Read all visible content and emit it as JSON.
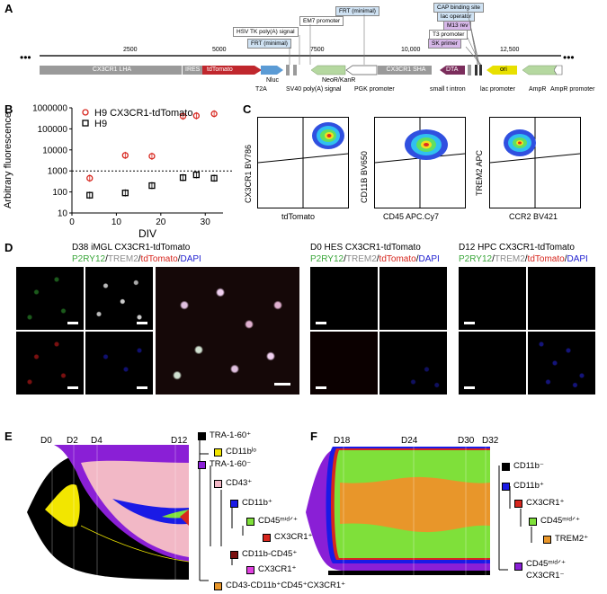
{
  "panels": {
    "a": "A",
    "b": "B",
    "c": "C",
    "d": "D",
    "e": "E",
    "f": "F"
  },
  "panel_a": {
    "ellipsis": "•••",
    "scale_ticks": [
      "2500",
      "5000",
      "7500",
      "10,000",
      "12,500"
    ],
    "segments": {
      "lha": "CX3CR1 LHA",
      "ires": "IRES",
      "tdtomato": "tdTomato",
      "sha": "CX3CR1 SHA",
      "dta": "DTA",
      "ori": "ori"
    },
    "top_labels": {
      "frt_min_top": "FRT (minimal)",
      "em7": "EM7 promoter",
      "hsv": "HSV TK poly(A) signal",
      "frt_min": "FRT (minimal)",
      "cap": "CAP binding site",
      "lac_op": "lac operator",
      "m13": "M13 rev",
      "t3": "T3 promoter",
      "sk": "SK primer"
    },
    "bottom_labels": {
      "t2a": "T2A",
      "nluc": "Nluc",
      "sv40": "SV40 poly(A) signal",
      "neor": "NeoR/KanR",
      "pgk": "PGK promoter",
      "small_t": "small t intron",
      "lac_prom": "lac promoter",
      "ampr": "AmpR",
      "ampr_prom": "AmpR promoter"
    },
    "colors": {
      "grey": "#9a9a9a",
      "red": "#c0272d",
      "blue": "#5b9bd5",
      "green": "#b5d8a0",
      "purple": "#7b2d5c",
      "yellow": "#e8e000"
    }
  },
  "chart_data": [
    {
      "type": "scatter",
      "ylabel": "Arbitrary fluorescence",
      "xlabel": "DIV",
      "yscale": "log",
      "ylim": [
        10,
        1000000
      ],
      "xlim": [
        0,
        34
      ],
      "x_ticks": [
        "0",
        "10",
        "20",
        "30"
      ],
      "y_ticks": [
        "1000000",
        "100000",
        "10000",
        "1000",
        "100",
        "10"
      ],
      "threshold": 1000,
      "series": [
        {
          "name": "H9 CX3CR1-tdTomato",
          "color": "#d7261e",
          "marker": "circle",
          "x": [
            4,
            12,
            18,
            25,
            28,
            32
          ],
          "y": [
            450,
            5500,
            5000,
            400000,
            420000,
            520000
          ]
        },
        {
          "name": "H9",
          "color": "#000000",
          "marker": "square",
          "x": [
            4,
            12,
            18,
            25,
            28,
            32
          ],
          "y": [
            70,
            90,
            200,
            480,
            650,
            450
          ]
        }
      ]
    }
  ],
  "panel_c": {
    "plots": [
      {
        "y": "CX3CR1 BV786",
        "x": "tdTomato"
      },
      {
        "y": "CD11B BV650",
        "x": "CD45 APC.Cy7"
      },
      {
        "y": "TREM2 APC",
        "x": "CCR2 BV421"
      }
    ]
  },
  "panel_d": {
    "groups": [
      {
        "title": "D38 iMGL CX3CR1-tdTomato"
      },
      {
        "title": "D0 HES CX3CR1-tdTomato"
      },
      {
        "title": "D12 HPC CX3CR1-tdTomato"
      }
    ],
    "stain": {
      "p2ry12": "P2RY12",
      "slash": "/",
      "trem2": "TREM2",
      "tdtomato": "tdTomato",
      "dapi": "DAPI"
    },
    "stain_colors": {
      "p2ry12": "#3aa63a",
      "trem2": "#8c8c8c",
      "tdtomato": "#d7261e",
      "dapi": "#1f1fd0"
    }
  },
  "panel_e": {
    "days": [
      "D0",
      "D2",
      "D4",
      "D12"
    ],
    "legend": [
      {
        "text": "TRA-1-60⁺",
        "color": "#000000"
      },
      {
        "text": "CD11bˡᵒ",
        "color": "#f2e600"
      },
      {
        "text": "TRA-1-60⁻",
        "color": "#8a1fd6"
      },
      {
        "text": "CD43⁺",
        "color": "#f2b8c6"
      },
      {
        "text": "CD11b⁺",
        "color": "#1a1ae6"
      },
      {
        "text": "CD45ᵐⁱᵈᐟ⁺",
        "color": "#7fe03a"
      },
      {
        "text": "CX3CR1⁺",
        "color": "#d7261e"
      },
      {
        "text": "CD11b-CD45⁺",
        "color": "#7a1010"
      },
      {
        "text": "CX3CR1⁺",
        "color": "#e040e0"
      },
      {
        "text": "CD43-CD11b⁺CD45⁺CX3CR1⁺",
        "color": "#e8962a"
      }
    ]
  },
  "panel_f": {
    "days": [
      "D18",
      "D24",
      "D30",
      "D32"
    ],
    "legend": [
      {
        "text": "CD11b⁻",
        "color": "#000000"
      },
      {
        "text": "CD11b⁺",
        "color": "#1a1ae6"
      },
      {
        "text": "CX3CR1⁺",
        "color": "#d7261e"
      },
      {
        "text": "CD45ᵐⁱᵈᐟ⁺",
        "color": "#7fe03a"
      },
      {
        "text": "TREM2⁺",
        "color": "#e8962a"
      },
      {
        "text": "CD45ᵐⁱᵈᐟ⁺",
        "color": "#8a1fd6"
      },
      {
        "text": "CX3CR1⁻",
        "color": "#8a1fd6"
      }
    ]
  }
}
